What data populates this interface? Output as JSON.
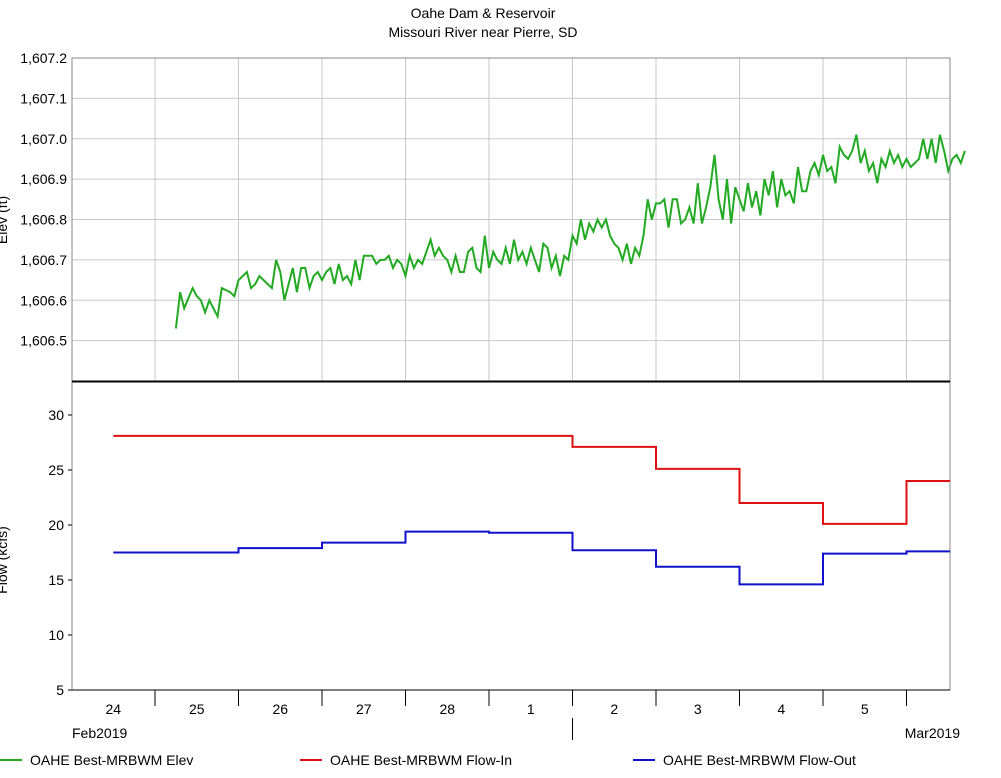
{
  "title": "Oahe Dam & Reservoir",
  "subtitle": "Missouri River near Pierre, SD",
  "chart_data": [
    {
      "type": "line",
      "panel": "top",
      "ylabel": "Elev (ft)",
      "ylim": [
        1606.4,
        1607.2
      ],
      "yticks": [
        1606.5,
        1606.6,
        1606.7,
        1606.8,
        1606.9,
        1607.0,
        1607.1,
        1607.2
      ],
      "ytick_labels": [
        "1,606.5",
        "1,606.6",
        "1,606.7",
        "1,606.8",
        "1,606.9",
        "1,607.0",
        "1,607.1",
        "1,607.2"
      ],
      "grid": true,
      "series": [
        {
          "name": "OAHE Best-MRBWM Elev",
          "color": "#22aa22",
          "x_days_from_feb24_midnight": [
            0.25,
            0.3,
            0.35,
            0.45,
            0.5,
            0.55,
            0.6,
            0.65,
            0.75,
            0.8,
            0.9,
            0.95,
            1,
            1.1,
            1.15,
            1.2,
            1.25,
            1.3,
            1.35,
            1.4,
            1.45,
            1.5,
            1.55,
            1.6,
            1.65,
            1.7,
            1.75,
            1.8,
            1.85,
            1.9,
            1.95,
            2,
            2.05,
            2.1,
            2.15,
            2.2,
            2.25,
            2.3,
            2.35,
            2.4,
            2.45,
            2.5,
            2.55,
            2.6,
            2.65,
            2.7,
            2.75,
            2.8,
            2.85,
            2.9,
            2.95,
            3,
            3.05,
            3.1,
            3.15,
            3.2,
            3.25,
            3.3,
            3.35,
            3.4,
            3.45,
            3.5,
            3.55,
            3.6,
            3.65,
            3.7,
            3.75,
            3.8,
            3.85,
            3.9,
            3.95,
            4,
            4.05,
            4.1,
            4.15,
            4.2,
            4.25,
            4.3,
            4.35,
            4.4,
            4.45,
            4.5,
            4.55,
            4.6,
            4.65,
            4.7,
            4.75,
            4.8,
            4.85,
            4.9,
            4.95,
            5,
            5.05,
            5.1,
            5.15,
            5.2,
            5.25,
            5.3,
            5.35,
            5.4,
            5.45,
            5.5,
            5.55,
            5.6,
            5.65,
            5.7,
            5.75,
            5.8,
            5.85,
            5.9,
            5.95,
            6,
            6.05,
            6.1,
            6.15,
            6.2,
            6.25,
            6.3,
            6.35,
            6.4,
            6.45,
            6.5,
            6.55,
            6.6,
            6.65,
            6.7,
            6.75,
            6.8,
            6.85,
            6.9,
            6.95,
            7,
            7.05,
            7.1,
            7.15,
            7.2,
            7.25,
            7.3,
            7.35,
            7.4,
            7.45,
            7.5,
            7.55,
            7.6,
            7.65,
            7.7,
            7.75,
            7.8,
            7.85,
            7.9,
            7.95,
            8,
            8.05,
            8.1,
            8.15,
            8.2,
            8.25,
            8.3,
            8.35,
            8.4,
            8.45,
            8.5,
            8.55,
            8.6,
            8.65,
            8.7,
            8.75,
            8.8,
            8.85,
            8.9,
            8.95,
            9,
            9.05,
            9.1,
            9.15,
            9.2,
            9.25,
            9.3,
            9.35,
            9.4,
            9.45,
            9.5,
            9.55,
            9.6,
            9.65,
            9.7,
            9.75,
            9.8,
            9.85,
            9.9,
            9.95,
            10,
            10.05
          ],
          "y": [
            1606.53,
            1606.62,
            1606.58,
            1606.63,
            1606.61,
            1606.6,
            1606.57,
            1606.6,
            1606.56,
            1606.63,
            1606.62,
            1606.61,
            1606.65,
            1606.67,
            1606.63,
            1606.64,
            1606.66,
            1606.65,
            1606.64,
            1606.63,
            1606.7,
            1606.67,
            1606.6,
            1606.64,
            1606.68,
            1606.62,
            1606.68,
            1606.68,
            1606.63,
            1606.66,
            1606.67,
            1606.65,
            1606.67,
            1606.68,
            1606.64,
            1606.69,
            1606.65,
            1606.66,
            1606.64,
            1606.7,
            1606.65,
            1606.71,
            1606.71,
            1606.71,
            1606.69,
            1606.7,
            1606.7,
            1606.71,
            1606.68,
            1606.7,
            1606.69,
            1606.66,
            1606.71,
            1606.68,
            1606.7,
            1606.69,
            1606.72,
            1606.75,
            1606.71,
            1606.73,
            1606.71,
            1606.7,
            1606.67,
            1606.71,
            1606.67,
            1606.67,
            1606.72,
            1606.73,
            1606.68,
            1606.67,
            1606.76,
            1606.68,
            1606.72,
            1606.7,
            1606.69,
            1606.73,
            1606.69,
            1606.75,
            1606.7,
            1606.72,
            1606.69,
            1606.73,
            1606.7,
            1606.67,
            1606.74,
            1606.73,
            1606.68,
            1606.71,
            1606.66,
            1606.71,
            1606.7,
            1606.76,
            1606.74,
            1606.8,
            1606.75,
            1606.79,
            1606.77,
            1606.8,
            1606.78,
            1606.8,
            1606.76,
            1606.74,
            1606.73,
            1606.7,
            1606.74,
            1606.69,
            1606.73,
            1606.71,
            1606.76,
            1606.85,
            1606.8,
            1606.84,
            1606.84,
            1606.85,
            1606.78,
            1606.85,
            1606.85,
            1606.79,
            1606.8,
            1606.83,
            1606.79,
            1606.89,
            1606.79,
            1606.83,
            1606.88,
            1606.96,
            1606.85,
            1606.8,
            1606.9,
            1606.79,
            1606.88,
            1606.85,
            1606.82,
            1606.89,
            1606.83,
            1606.87,
            1606.81,
            1606.9,
            1606.86,
            1606.92,
            1606.83,
            1606.9,
            1606.86,
            1606.87,
            1606.84,
            1606.93,
            1606.87,
            1606.87,
            1606.92,
            1606.94,
            1606.91,
            1606.96,
            1606.92,
            1606.93,
            1606.89,
            1606.98,
            1606.96,
            1606.95,
            1606.97,
            1607.01,
            1606.94,
            1606.97,
            1606.92,
            1606.94,
            1606.89,
            1606.95,
            1606.93,
            1606.97,
            1606.94,
            1606.96,
            1606.93,
            1606.95,
            1606.93,
            1606.94,
            1606.95,
            1607.0,
            1606.95,
            1607.0,
            1606.94,
            1607.01,
            1606.97,
            1606.92,
            1606.95,
            1606.96,
            1606.94,
            1606.97
          ]
        }
      ]
    },
    {
      "type": "line",
      "panel": "bottom",
      "ylabel": "Flow (kcfs)",
      "ylim": [
        5,
        33
      ],
      "yticks": [
        5,
        10,
        15,
        20,
        25,
        30
      ],
      "ytick_labels": [
        "5",
        "10",
        "15",
        "20",
        "25",
        "30"
      ],
      "grid": false,
      "series": [
        {
          "name": "OAHE Best-MRBWM Flow-In",
          "color": "#dd1111",
          "step": true,
          "x_days_from_feb24_midnight": [
            -0.5,
            0,
            1,
            2,
            3,
            4,
            5,
            6,
            7,
            8,
            9,
            10
          ],
          "y": [
            28.1,
            28.1,
            28.1,
            28.1,
            28.1,
            28.1,
            27.1,
            25.1,
            22.0,
            20.1,
            24.0,
            24.0
          ]
        },
        {
          "name": "OAHE Best-MRBWM Flow-Out",
          "color": "#1111cc",
          "step": true,
          "x_days_from_feb24_midnight": [
            -0.5,
            0,
            1,
            2,
            3,
            4,
            5,
            6,
            7,
            8,
            9,
            10
          ],
          "y": [
            17.5,
            17.5,
            17.9,
            18.4,
            19.4,
            19.3,
            17.7,
            16.2,
            14.6,
            17.4,
            17.6,
            17.6
          ]
        }
      ]
    }
  ],
  "xaxis": {
    "day_labels": [
      "24",
      "25",
      "26",
      "27",
      "28",
      "1",
      "2",
      "3",
      "4",
      "5"
    ],
    "month_left": "Feb2019",
    "month_right": "Mar2019"
  },
  "legend": {
    "placement": "bottom",
    "items": [
      {
        "label": "OAHE Best-MRBWM Elev",
        "color": "#22aa22"
      },
      {
        "label": "OAHE Best-MRBWM Flow-In",
        "color": "#dd1111"
      },
      {
        "label": "OAHE Best-MRBWM Flow-Out",
        "color": "#1111cc"
      }
    ]
  }
}
